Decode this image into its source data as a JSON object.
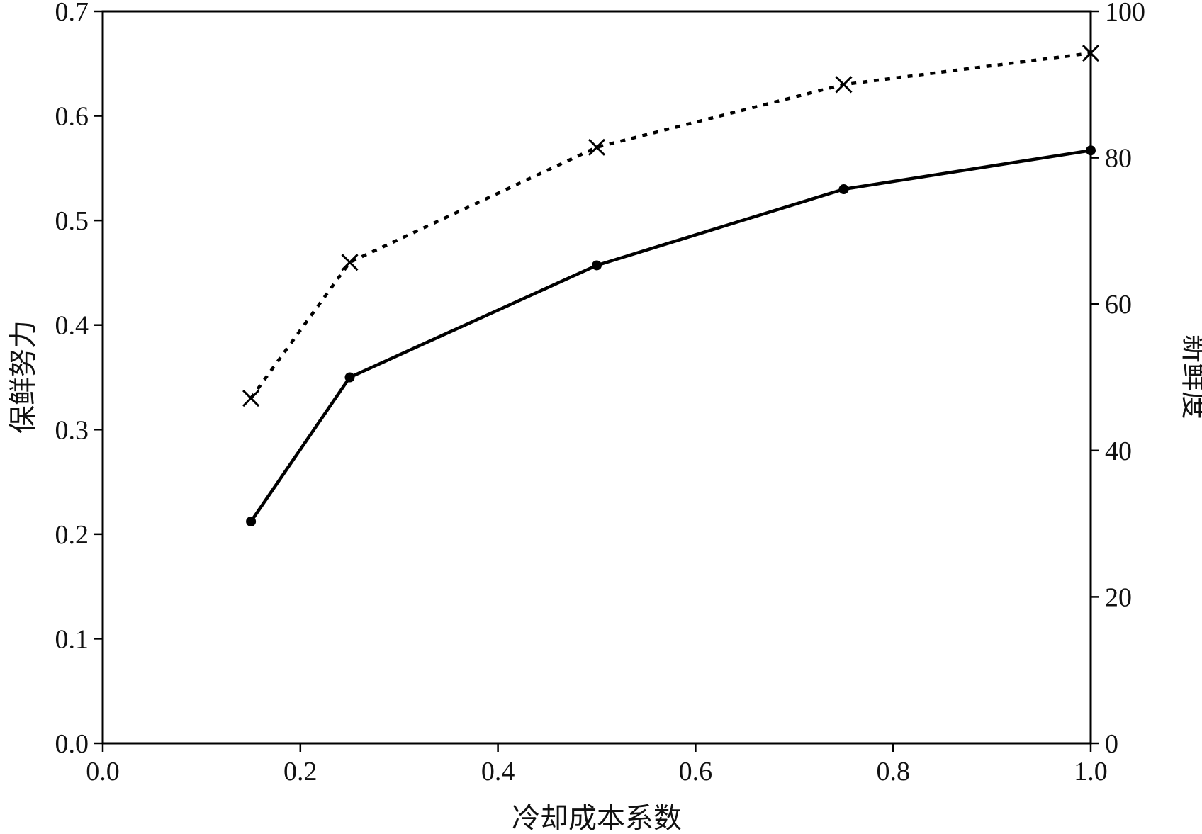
{
  "chart_data": {
    "type": "line",
    "xlabel": "冷却成本系数",
    "ylabel_left": "保鲜努力",
    "ylabel_right": "新鲜度",
    "xlim": [
      0.0,
      1.0
    ],
    "ylim_left": [
      0.0,
      0.7
    ],
    "ylim_right": [
      0,
      100
    ],
    "x_ticks": [
      "0.0",
      "0.2",
      "0.4",
      "0.6",
      "0.8",
      "1.0"
    ],
    "y_left_ticks": [
      "0.0",
      "0.1",
      "0.2",
      "0.3",
      "0.4",
      "0.5",
      "0.6",
      "0.7"
    ],
    "y_right_ticks": [
      "0",
      "20",
      "40",
      "60",
      "80",
      "100"
    ],
    "grid": false,
    "series": [
      {
        "axis": "left",
        "style": "dotted",
        "marker": "x",
        "color": "#000000",
        "x": [
          0.15,
          0.25,
          0.5,
          0.75,
          1.0
        ],
        "y": [
          0.33,
          0.46,
          0.57,
          0.63,
          0.66
        ]
      },
      {
        "axis": "right",
        "style": "solid",
        "marker": "dot",
        "color": "#000000",
        "x": [
          0.15,
          0.25,
          0.5,
          0.75,
          1.0
        ],
        "y": [
          30.3,
          50.0,
          65.3,
          75.7,
          81.0
        ]
      }
    ]
  }
}
